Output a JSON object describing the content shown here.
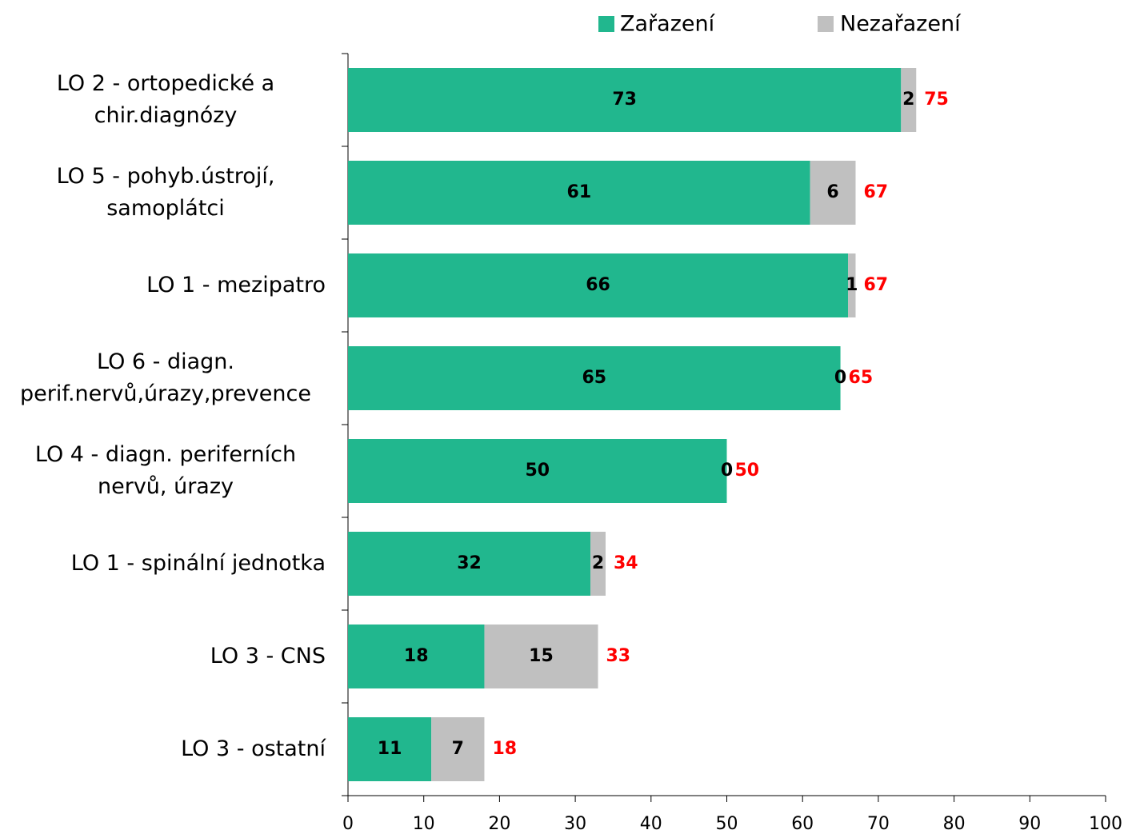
{
  "chart_data": {
    "type": "stacked-bar-horizontal",
    "categories": [
      "LO 2 - ortopedické a chir.diagnózy",
      "LO 5 - pohyb.ústrojí, samoplátci",
      "LO 1 - mezipatro",
      "LO 6 - diagn. perif.nervů,úrazy,prevence",
      "LO 4 - diagn. periferních nervů, úrazy",
      "LO 1 - spinální jednotka",
      "LO 3 - CNS",
      "LO 3 - ostatní"
    ],
    "series": [
      {
        "name": "Zařazení",
        "color": "#21b78e",
        "values": [
          73,
          61,
          66,
          65,
          50,
          32,
          18,
          11
        ]
      },
      {
        "name": "Nezařazení",
        "color": "#c0c0c0",
        "values": [
          2,
          6,
          1,
          0,
          0,
          2,
          15,
          7
        ]
      }
    ],
    "totals": [
      75,
      67,
      67,
      65,
      50,
      34,
      33,
      18
    ],
    "total_color": "#ff0000",
    "xlim": [
      0,
      100
    ],
    "xticks": [
      0,
      10,
      20,
      30,
      40,
      50,
      60,
      70,
      80,
      90,
      100
    ],
    "legend": "top"
  }
}
